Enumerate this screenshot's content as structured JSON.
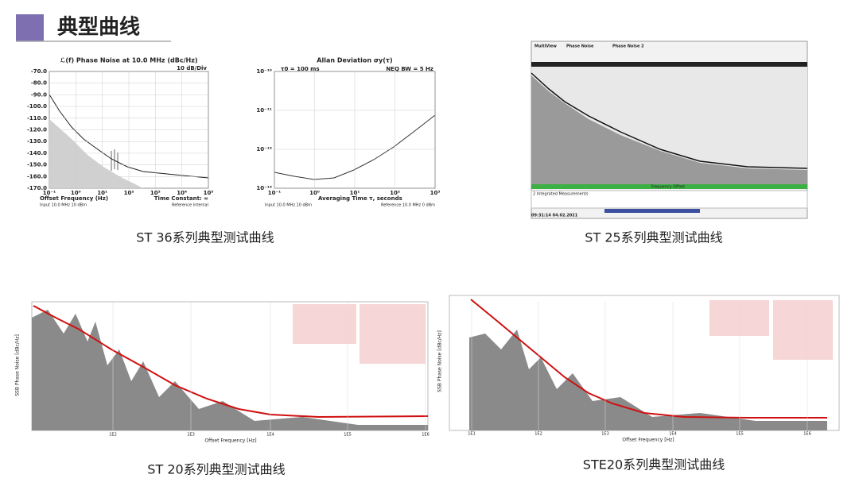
{
  "header": {
    "title": "典型曲线"
  },
  "figures": [
    {
      "caption": "ST 36系列典型测试曲线",
      "plots": [
        {
          "title": "ℒ(f) Phase Noise at 10.0 MHz (dBc/Hz)",
          "scale": "10 dB/Div",
          "yticks": [
            "-70.0",
            "-80.0",
            "-90.0",
            "-100.0",
            "-110.0",
            "-120.0",
            "-130.0",
            "-140.0",
            "-150.0",
            "-160.0",
            "-170.0"
          ],
          "xticks": [
            "10⁻¹",
            "10⁰",
            "10¹",
            "10²",
            "10³",
            "10⁴",
            "10⁵"
          ],
          "xlabel": "Offset Frequency (Hz)",
          "note": "Time Constant: ∞",
          "footer_left": "Input 10.0 MHz 10 dBm",
          "footer_right": "Reference Internal"
        },
        {
          "title": "Allan Deviation σy(τ)",
          "setting": "τ0 = 100 ms",
          "note": "NEQ BW = 5 Hz",
          "yticks": [
            "10⁻¹⁰",
            "10⁻¹¹",
            "10⁻¹²",
            "10⁻¹³"
          ],
          "xticks": [
            "10⁻¹",
            "10⁰",
            "10¹",
            "10²",
            "10³"
          ],
          "xlabel": "Averaging Time τ, seconds",
          "footer_left": "Input 10.0 MHz 10 dBm",
          "footer_right": "Reference 10.0 MHz 0 dBm"
        }
      ]
    },
    {
      "caption": "ST 25系列典型测试曲线",
      "tabs": [
        "MultiView",
        "Phase Noise",
        "Phase Noise 2"
      ],
      "xlabel": "Frequency Offset",
      "table_title": "2 Integrated Measurements",
      "timestamp": "09:31:14 04.02.2021"
    },
    {
      "caption": "ST 20系列典型测试曲线",
      "xlabel": "Offset Frequency [Hz]",
      "ylabel": "SSB Phase Noise [dBc/Hz]",
      "xticks": [
        "1E2",
        "1E3",
        "1E4",
        "1E5",
        "1E6"
      ]
    },
    {
      "caption": "STE20系列典型测试曲线",
      "xlabel": "Offset Frequency [Hz]",
      "ylabel": "SSB Phase Noise [dBc/Hz]",
      "xticks": [
        "1E1",
        "1E2",
        "1E3",
        "1E4",
        "1E5",
        "1E6"
      ]
    }
  ]
}
